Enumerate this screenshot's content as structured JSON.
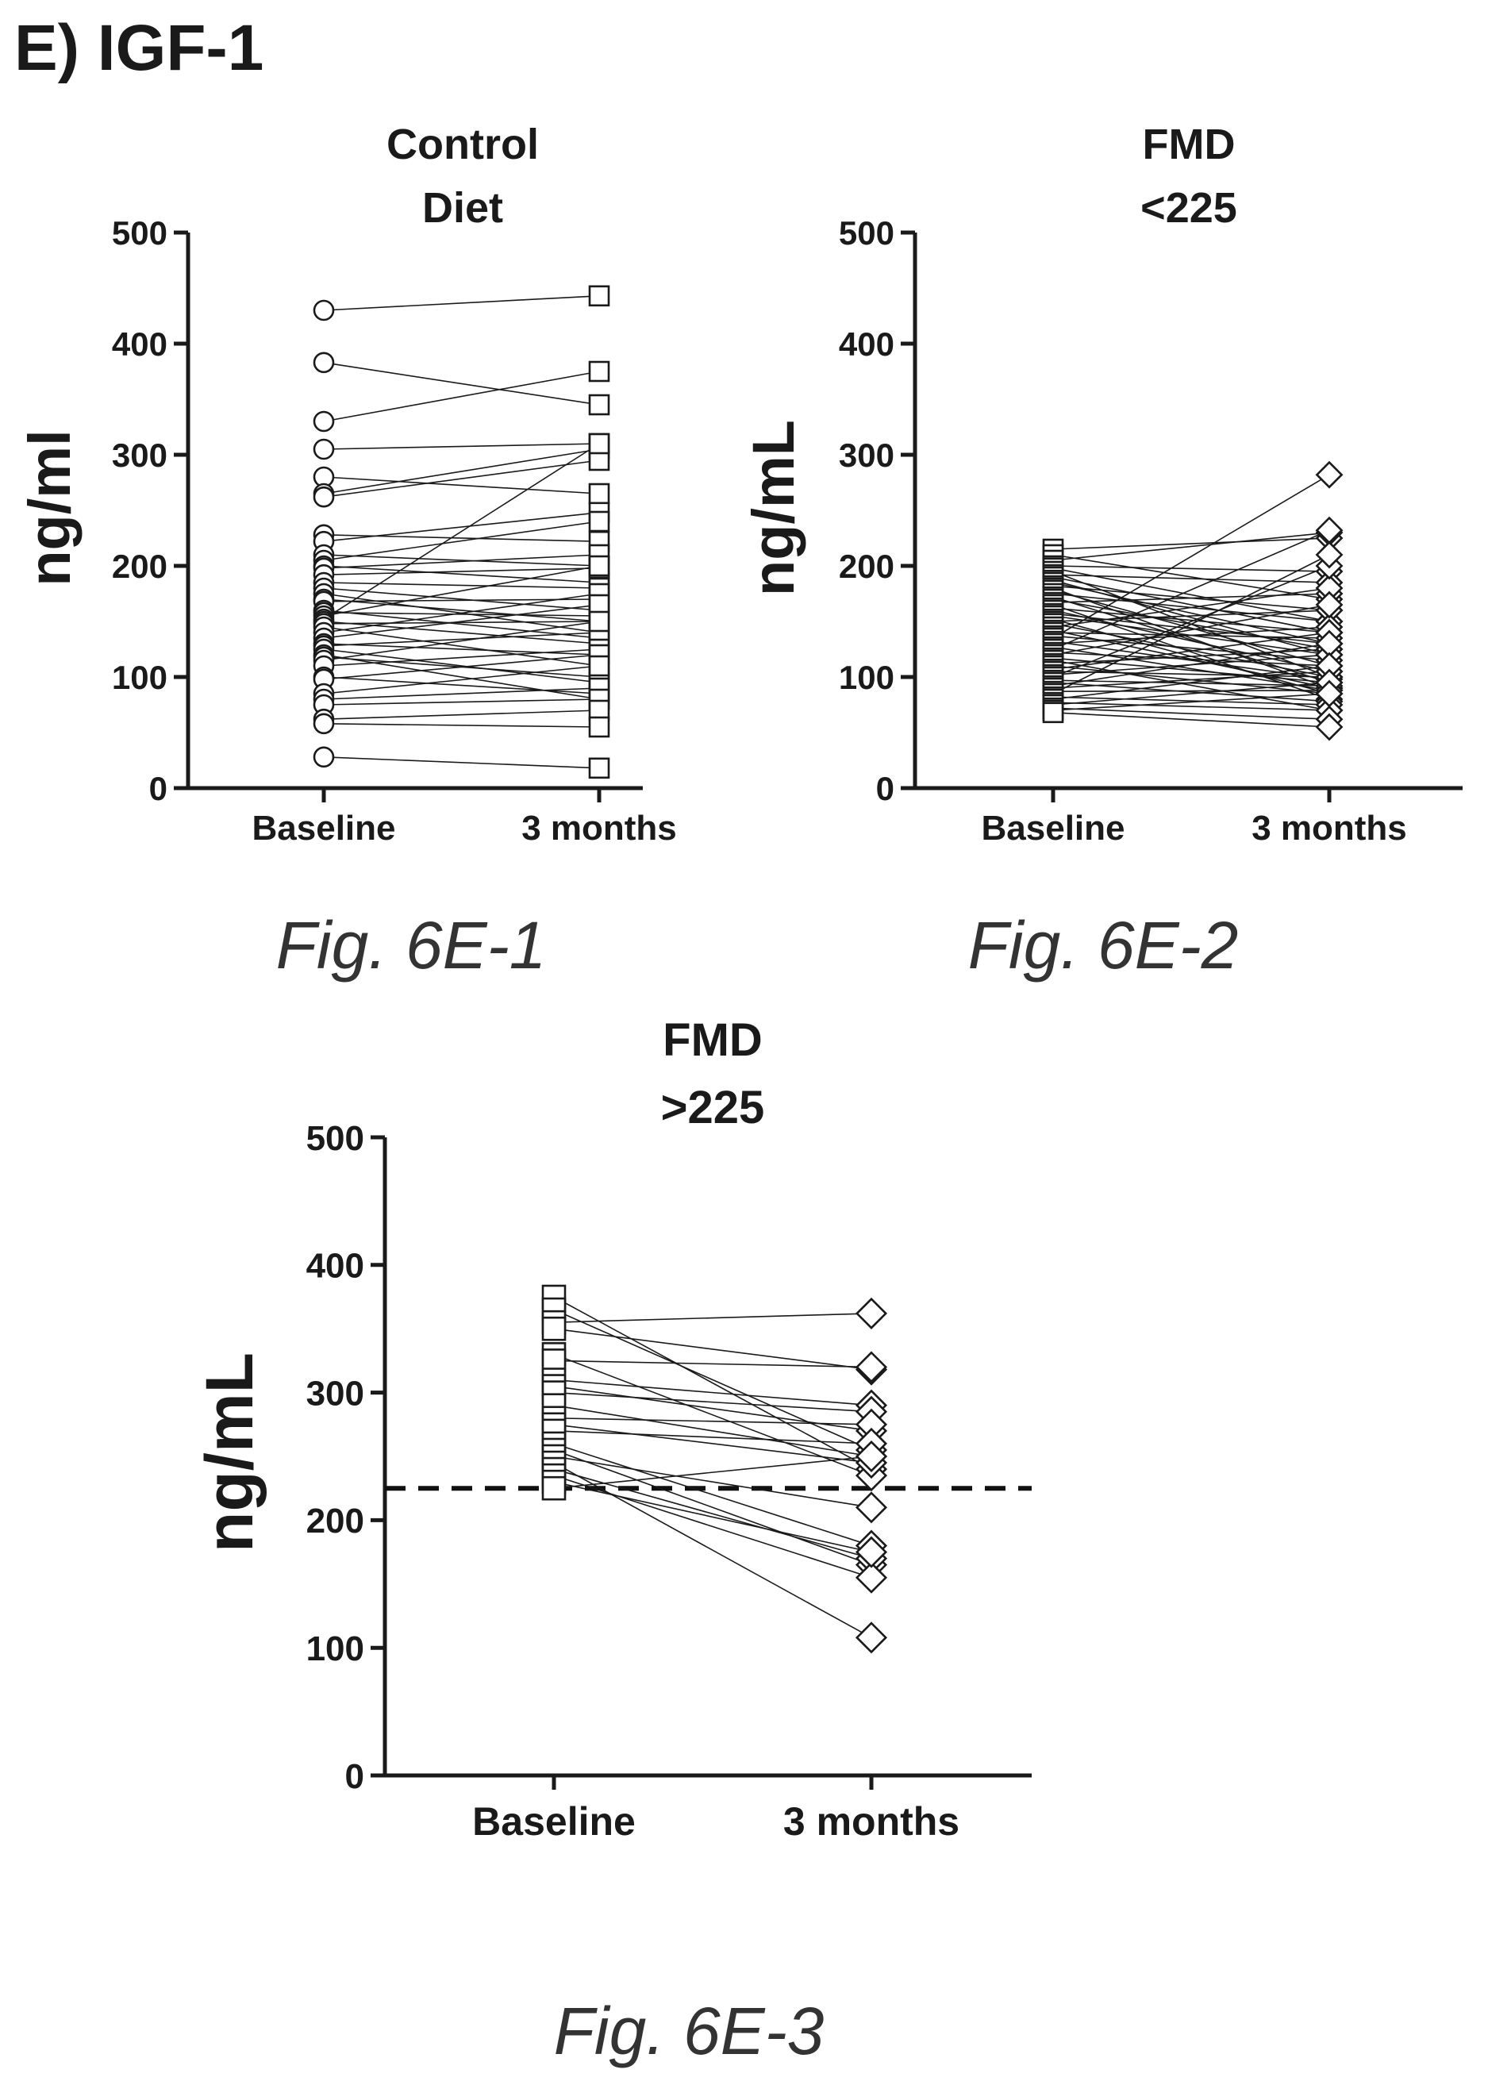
{
  "header": {
    "title": "E) IGF-1"
  },
  "colors": {
    "ink": "#1a1a1a",
    "marker_fill": "#ffffff",
    "reference_line": "#111111"
  },
  "chart_data": [
    {
      "type": "line",
      "title_lines": [
        "Control",
        "Diet"
      ],
      "caption": "Fig. 6E-1",
      "ylabel": "ng/ml",
      "ylim": [
        0,
        500
      ],
      "yticks": [
        0,
        100,
        200,
        300,
        400,
        500
      ],
      "categories": [
        "Baseline",
        "3 months"
      ],
      "marker_baseline": "circle",
      "marker_followup": "square",
      "grid": false,
      "legend": "none",
      "pairs": [
        [
          430,
          443
        ],
        [
          383,
          345
        ],
        [
          330,
          375
        ],
        [
          305,
          310
        ],
        [
          280,
          265
        ],
        [
          265,
          305
        ],
        [
          262,
          295
        ],
        [
          228,
          222
        ],
        [
          222,
          248
        ],
        [
          210,
          200
        ],
        [
          205,
          240
        ],
        [
          200,
          185
        ],
        [
          198,
          210
        ],
        [
          192,
          198
        ],
        [
          185,
          180
        ],
        [
          180,
          160
        ],
        [
          175,
          140
        ],
        [
          170,
          150
        ],
        [
          168,
          170
        ],
        [
          160,
          135
        ],
        [
          158,
          155
        ],
        [
          155,
          200
        ],
        [
          152,
          310
        ],
        [
          150,
          130
        ],
        [
          148,
          150
        ],
        [
          145,
          110
        ],
        [
          140,
          175
        ],
        [
          135,
          165
        ],
        [
          130,
          120
        ],
        [
          128,
          140
        ],
        [
          125,
          95
        ],
        [
          120,
          80
        ],
        [
          118,
          100
        ],
        [
          115,
          150
        ],
        [
          110,
          125
        ],
        [
          100,
          85
        ],
        [
          98,
          120
        ],
        [
          85,
          110
        ],
        [
          80,
          90
        ],
        [
          75,
          80
        ],
        [
          62,
          70
        ],
        [
          58,
          55
        ],
        [
          28,
          18
        ]
      ]
    },
    {
      "type": "line",
      "title_lines": [
        "FMD",
        "<225"
      ],
      "caption": "Fig. 6E-2",
      "ylabel": "ng/mL",
      "ylim": [
        0,
        500
      ],
      "yticks": [
        0,
        100,
        200,
        300,
        400,
        500
      ],
      "categories": [
        "Baseline",
        "3 months"
      ],
      "marker_baseline": "square",
      "marker_followup": "diamond",
      "grid": false,
      "legend": "none",
      "pairs": [
        [
          215,
          225
        ],
        [
          210,
          170
        ],
        [
          205,
          230
        ],
        [
          200,
          195
        ],
        [
          198,
          150
        ],
        [
          195,
          100
        ],
        [
          192,
          185
        ],
        [
          190,
          140
        ],
        [
          187,
          120
        ],
        [
          185,
          130
        ],
        [
          182,
          160
        ],
        [
          180,
          90
        ],
        [
          178,
          110
        ],
        [
          175,
          150
        ],
        [
          172,
          95
        ],
        [
          170,
          125
        ],
        [
          167,
          175
        ],
        [
          165,
          80
        ],
        [
          162,
          140
        ],
        [
          160,
          105
        ],
        [
          157,
          130
        ],
        [
          155,
          120
        ],
        [
          152,
          85
        ],
        [
          150,
          160
        ],
        [
          148,
          100
        ],
        [
          145,
          180
        ],
        [
          142,
          90
        ],
        [
          140,
          135
        ],
        [
          137,
          115
        ],
        [
          135,
          282
        ],
        [
          132,
          98
        ],
        [
          130,
          145
        ],
        [
          127,
          88
        ],
        [
          125,
          232
        ],
        [
          122,
          110
        ],
        [
          120,
          165
        ],
        [
          117,
          95
        ],
        [
          115,
          70
        ],
        [
          112,
          125
        ],
        [
          110,
          85
        ],
        [
          107,
          140
        ],
        [
          105,
          100
        ],
        [
          102,
          120
        ],
        [
          100,
          200
        ],
        [
          97,
          92
        ],
        [
          95,
          78
        ],
        [
          92,
          130
        ],
        [
          90,
          105
        ],
        [
          87,
          88
        ],
        [
          85,
          210
        ],
        [
          82,
          75
        ],
        [
          80,
          110
        ],
        [
          77,
          70
        ],
        [
          75,
          95
        ],
        [
          72,
          62
        ],
        [
          70,
          85
        ],
        [
          68,
          55
        ]
      ]
    },
    {
      "type": "line",
      "title_lines": [
        "FMD",
        ">225"
      ],
      "caption": "Fig. 6E-3",
      "ylabel": "ng/mL",
      "ylim": [
        0,
        500
      ],
      "yticks": [
        0,
        100,
        200,
        300,
        400,
        500
      ],
      "categories": [
        "Baseline",
        "3 months"
      ],
      "marker_baseline": "square",
      "marker_followup": "diamond",
      "grid": false,
      "legend": "none",
      "reference_line": {
        "y": 225,
        "style": "dashed"
      },
      "pairs": [
        [
          375,
          240
        ],
        [
          365,
          255
        ],
        [
          355,
          362
        ],
        [
          350,
          318
        ],
        [
          330,
          235
        ],
        [
          325,
          320
        ],
        [
          310,
          290
        ],
        [
          305,
          270
        ],
        [
          300,
          285
        ],
        [
          290,
          250
        ],
        [
          280,
          275
        ],
        [
          275,
          245
        ],
        [
          270,
          260
        ],
        [
          260,
          180
        ],
        [
          255,
          165
        ],
        [
          250,
          210
        ],
        [
          245,
          108
        ],
        [
          240,
          170
        ],
        [
          235,
          155
        ],
        [
          230,
          175
        ],
        [
          225,
          250
        ]
      ]
    }
  ]
}
